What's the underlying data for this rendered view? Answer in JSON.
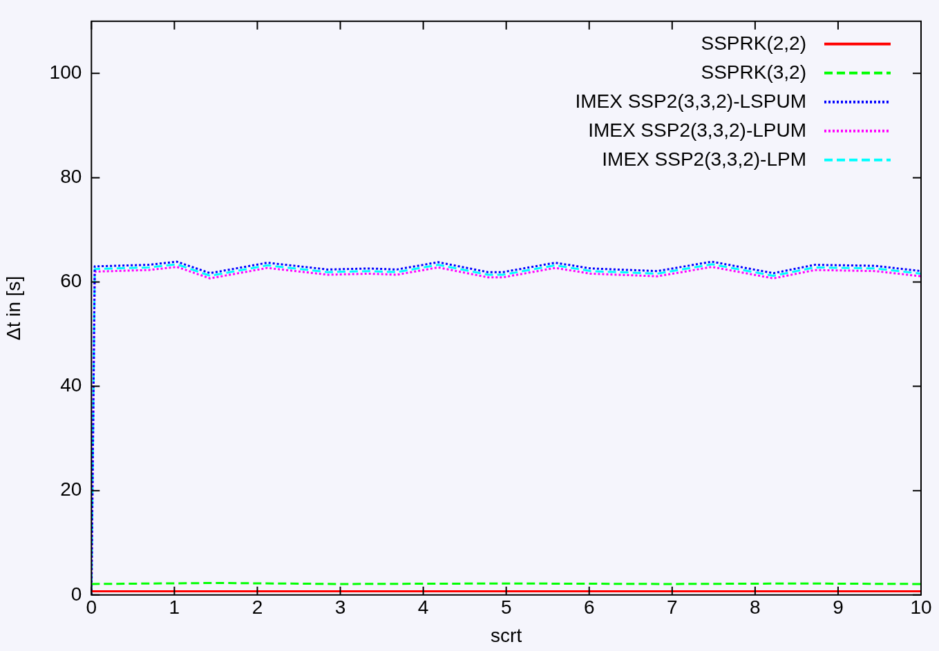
{
  "chart_data": {
    "type": "line",
    "xlabel": "scrt",
    "ylabel": "Δt in [s]",
    "xlim": [
      0,
      10
    ],
    "xticks": [
      0,
      1,
      2,
      3,
      4,
      5,
      6,
      7,
      8,
      9,
      10
    ],
    "ylim": [
      0,
      110
    ],
    "yticks": [
      0,
      20,
      40,
      60,
      80,
      100
    ],
    "grid": false,
    "legend": "top right",
    "marker": "none",
    "series": [
      {
        "name": "SSPRK(2,2)",
        "color": "#ff0000",
        "line_style": "solid",
        "x": [
          0,
          2,
          4,
          6,
          8,
          10
        ],
        "values": [
          0.7,
          0.7,
          0.7,
          0.7,
          0.7,
          0.7
        ]
      },
      {
        "name": "SSPRK(3,2)",
        "color": "#00ff00",
        "line_style": "dashed",
        "x": [
          0,
          1.5,
          3,
          5,
          7,
          8.5,
          10
        ],
        "values": [
          2.1,
          2.3,
          2.1,
          2.2,
          2.1,
          2.2,
          2.1
        ]
      },
      {
        "name": "IMEX SSP2(3,3,2)-LSPUM",
        "color": "#0000ff",
        "line_style": "dotted",
        "x": [
          0,
          0.04,
          0.69,
          1.03,
          1.43,
          2.12,
          2.85,
          3.35,
          3.68,
          4.18,
          4.78,
          4.96,
          5.59,
          6.02,
          6.82,
          7.48,
          8.22,
          8.72,
          9.45,
          10
        ],
        "values": [
          0,
          63,
          63.3,
          63.9,
          61.7,
          63.7,
          62.4,
          62.6,
          62.4,
          63.8,
          61.9,
          61.9,
          63.7,
          62.6,
          62.1,
          63.9,
          61.7,
          63.3,
          63.1,
          62.1
        ]
      },
      {
        "name": "IMEX SSP2(3,3,2)-LPUM",
        "color": "#ff00ff",
        "line_style": "dotted",
        "x": [
          0,
          0.04,
          0.69,
          1.03,
          1.43,
          2.12,
          2.85,
          3.35,
          3.68,
          4.18,
          4.78,
          4.96,
          5.59,
          6.02,
          6.82,
          7.48,
          8.22,
          8.72,
          9.45,
          10
        ],
        "values": [
          0,
          62,
          62.3,
          62.9,
          60.7,
          62.7,
          61.4,
          61.6,
          61.4,
          62.8,
          60.9,
          60.9,
          62.7,
          61.6,
          61.1,
          62.9,
          60.7,
          62.3,
          62.1,
          61.1
        ]
      },
      {
        "name": "IMEX SSP2(3,3,2)-LPM",
        "color": "#00ffff",
        "line_style": "dashed",
        "x": [
          0,
          0.04,
          0.69,
          1.03,
          1.43,
          2.12,
          2.85,
          3.35,
          3.68,
          4.18,
          4.78,
          4.96,
          5.59,
          6.02,
          6.82,
          7.48,
          8.22,
          8.72,
          9.45,
          10
        ],
        "values": [
          0,
          62.5,
          62.8,
          63.4,
          61.2,
          63.2,
          61.9,
          62.1,
          61.9,
          63.3,
          61.4,
          61.4,
          63.2,
          62.1,
          61.6,
          63.4,
          61.2,
          62.8,
          62.6,
          61.6
        ]
      }
    ]
  }
}
